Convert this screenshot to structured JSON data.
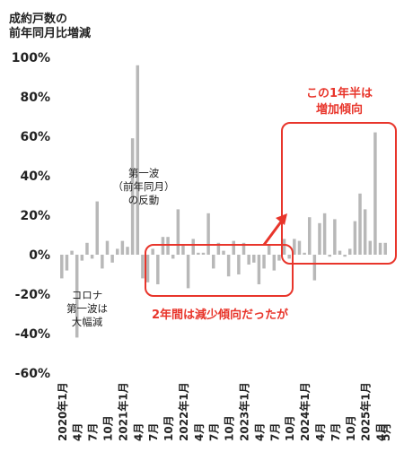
{
  "chart_data": {
    "type": "bar",
    "title_lines": [
      "成約戸数の",
      "前年同月比増減"
    ],
    "ylim": [
      -60,
      100
    ],
    "yticks": [
      "100%",
      "80%",
      "60%",
      "40%",
      "20%",
      "0%",
      "-20%",
      "-40%",
      "-60%"
    ],
    "x_tick_labels": [
      {
        "index": 0,
        "label": "2020年1月"
      },
      {
        "index": 3,
        "label": "4月"
      },
      {
        "index": 6,
        "label": "7月"
      },
      {
        "index": 9,
        "label": "10月"
      },
      {
        "index": 12,
        "label": "2021年1月"
      },
      {
        "index": 15,
        "label": "4月"
      },
      {
        "index": 18,
        "label": "7月"
      },
      {
        "index": 21,
        "label": "10月"
      },
      {
        "index": 24,
        "label": "2022年1月"
      },
      {
        "index": 27,
        "label": "4月"
      },
      {
        "index": 30,
        "label": "7月"
      },
      {
        "index": 33,
        "label": "10月"
      },
      {
        "index": 36,
        "label": "2023年1月"
      },
      {
        "index": 39,
        "label": "4月"
      },
      {
        "index": 42,
        "label": "7月"
      },
      {
        "index": 45,
        "label": "10月"
      },
      {
        "index": 48,
        "label": "2024年1月"
      },
      {
        "index": 51,
        "label": "4月"
      },
      {
        "index": 54,
        "label": "7月"
      },
      {
        "index": 57,
        "label": "10月"
      },
      {
        "index": 60,
        "label": "2025年1月"
      },
      {
        "index": 63,
        "label": "4月"
      },
      {
        "index": 64,
        "label": "5月"
      }
    ],
    "values": [
      -12,
      -8,
      2,
      -42,
      -3,
      6,
      -2,
      27,
      -7,
      7,
      -4,
      3,
      7,
      4,
      59,
      96,
      -12,
      -14,
      3,
      -15,
      9,
      9,
      -2,
      23,
      5,
      -17,
      8,
      1,
      1,
      21,
      -7,
      6,
      2,
      -11,
      7,
      -10,
      6,
      -5,
      -4,
      -15,
      -7,
      5,
      -8,
      -3,
      8,
      -2,
      8,
      7,
      1,
      19,
      -13,
      16,
      21,
      -1,
      18,
      2,
      -1,
      3,
      17,
      31,
      23,
      7,
      62,
      6,
      6
    ],
    "bar_color": "#b8b8b8",
    "annotations": {
      "corona": [
        "コロナ",
        "第一波は",
        "大幅減"
      ],
      "wave1": [
        "第一波",
        "（前年同月）",
        "の反動"
      ],
      "decrease": "2年間は減少傾向だったが",
      "increase": [
        "この1年半は",
        "増加傾向"
      ]
    },
    "highlight_color": "#e8352b",
    "grid": false
  }
}
